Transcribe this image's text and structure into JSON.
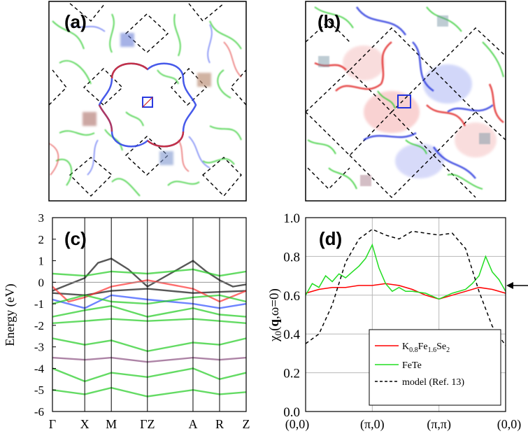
{
  "panels": {
    "a": {
      "label": "(a)"
    },
    "b": {
      "label": "(b)"
    },
    "c": {
      "label": "(c)"
    },
    "d": {
      "label": "(d)"
    }
  },
  "chart_data": [
    {
      "type": "heatmap",
      "panel": "a",
      "description_series": [
        {
          "name": "Fermi surface (red/blue)",
          "color": "#e03030"
        },
        {
          "name": "Fermi surface (green)",
          "color": "#22cc22"
        }
      ]
    },
    {
      "type": "heatmap",
      "panel": "b",
      "description_series": [
        {
          "name": "Fermi surface (red/blue)",
          "color": "#e03030"
        },
        {
          "name": "Fermi surface (green)",
          "color": "#22cc22"
        }
      ]
    },
    {
      "type": "line",
      "panel": "c",
      "title": "",
      "ylabel": "Energy (eV)",
      "ylim": [
        -6,
        3
      ],
      "yticks": [
        3,
        2,
        1,
        0,
        -1,
        -2,
        -3,
        -4,
        -5,
        -6
      ],
      "ytick_labels": [
        "3",
        "2",
        "1",
        "0",
        "-1",
        "-2",
        "-3",
        "-4",
        "-5",
        "-6"
      ],
      "kpoints": [
        "Γ",
        "X",
        "M",
        "ΓZ",
        "A",
        "R",
        "Z"
      ],
      "kpoint_positions": [
        0,
        0.34,
        0.62,
        1.0,
        1.48,
        1.76,
        2.04
      ],
      "bands": [
        {
          "color": "#111111",
          "x": [
            0,
            0.17,
            0.34,
            0.48,
            0.62,
            0.8,
            1.0
          ],
          "y": [
            -0.4,
            -0.1,
            0.2,
            0.9,
            1.1,
            0.6,
            -0.2
          ]
        },
        {
          "color": "#111111",
          "x": [
            1.0,
            1.24,
            1.48,
            1.62,
            1.76,
            1.9,
            2.04
          ],
          "y": [
            -0.2,
            0.4,
            1.0,
            0.5,
            0.1,
            -0.2,
            -0.1
          ]
        },
        {
          "color": "#111111",
          "x": [
            0,
            0.34,
            0.62,
            1.0,
            1.48,
            2.04
          ],
          "y": [
            -0.5,
            -0.6,
            -0.4,
            -0.3,
            -0.5,
            -0.4
          ]
        },
        {
          "color": "#ff3030",
          "x": [
            0,
            0.17,
            0.34,
            0.62,
            1.0
          ],
          "y": [
            -0.2,
            -0.9,
            -0.7,
            -0.2,
            0.1
          ]
        },
        {
          "color": "#ff3030",
          "x": [
            1.0,
            1.48,
            1.76,
            2.04
          ],
          "y": [
            0.1,
            -0.3,
            -0.9,
            -0.4
          ]
        },
        {
          "color": "#3050ff",
          "x": [
            0,
            0.34,
            0.62,
            1.0
          ],
          "y": [
            -0.8,
            -1.2,
            -0.6,
            -0.8
          ]
        },
        {
          "color": "#3050ff",
          "x": [
            1.0,
            1.48,
            1.76,
            2.04
          ],
          "y": [
            -0.8,
            -1.0,
            -1.2,
            -1.0
          ]
        },
        {
          "color": "#22cc22",
          "x": [
            0,
            0.34,
            0.62,
            1.0,
            1.48,
            1.76,
            2.04
          ],
          "y": [
            -1.0,
            -0.6,
            -0.9,
            -1.0,
            -0.7,
            -0.6,
            -0.9
          ]
        },
        {
          "color": "#22cc22",
          "x": [
            0,
            0.34,
            0.62,
            1.0,
            1.48,
            1.76,
            2.04
          ],
          "y": [
            -1.6,
            -1.3,
            -1.1,
            -1.6,
            -1.2,
            -1.5,
            -1.6
          ]
        },
        {
          "color": "#22cc22",
          "x": [
            0,
            0.34,
            0.62,
            1.0,
            1.48,
            1.76,
            2.04
          ],
          "y": [
            -1.9,
            -1.8,
            -1.7,
            -1.8,
            -1.7,
            -1.8,
            -1.9
          ]
        },
        {
          "color": "#22cc22",
          "x": [
            0,
            0.34,
            0.62,
            1.0,
            1.48,
            1.76,
            2.04
          ],
          "y": [
            0.4,
            0.3,
            0.5,
            0.4,
            0.6,
            0.3,
            0.5
          ]
        },
        {
          "color": "#22cc22",
          "x": [
            0,
            0.34,
            0.62,
            1.0,
            1.48,
            1.76,
            2.04
          ],
          "y": [
            -2.6,
            -2.9,
            -2.7,
            -3.2,
            -2.8,
            -2.9,
            -2.6
          ]
        },
        {
          "color": "#8a5080",
          "x": [
            0,
            0.34,
            0.62,
            1.0,
            1.48,
            1.76,
            2.04
          ],
          "y": [
            -3.5,
            -3.6,
            -3.5,
            -3.7,
            -3.5,
            -3.6,
            -3.5
          ]
        },
        {
          "color": "#22cc22",
          "x": [
            0,
            0.34,
            0.62,
            1.0,
            1.48,
            1.76,
            2.04
          ],
          "y": [
            -4.0,
            -4.6,
            -4.2,
            -4.4,
            -4.0,
            -4.5,
            -4.2
          ]
        },
        {
          "color": "#22cc22",
          "x": [
            0,
            0.34,
            0.62,
            1.0,
            1.48,
            1.76,
            2.04
          ],
          "y": [
            -5.0,
            -5.2,
            -4.9,
            -5.3,
            -5.0,
            -5.2,
            -5.1
          ]
        }
      ]
    },
    {
      "type": "line",
      "panel": "d",
      "title": "",
      "ylabel": "χ0(q,ω=0)",
      "ylim": [
        0.0,
        1.0
      ],
      "yticks": [
        0.0,
        0.2,
        0.4,
        0.6,
        0.8,
        1.0
      ],
      "ytick_labels": [
        "0.0",
        "0.2",
        "0.4",
        "0.6",
        "0.8",
        "1.0"
      ],
      "xtick_labels": [
        "(0,0)",
        "(π,0)",
        "(π,π)",
        "(0,0)"
      ],
      "xlim": [
        0,
        3
      ],
      "legend_position": "lower-right",
      "series": [
        {
          "name": "K0.8Fe1.6Se2",
          "name_parts": {
            "base1": "K",
            "sub1": "0.8",
            "base2": "Fe",
            "sub2": "1.6",
            "base3": "Se",
            "sub3": "2"
          },
          "color": "#ff0000",
          "dash": "solid",
          "x": [
            0,
            0.2,
            0.4,
            0.6,
            0.8,
            1.0,
            1.2,
            1.4,
            1.6,
            1.8,
            2.0,
            2.2,
            2.4,
            2.6,
            2.8,
            3.0
          ],
          "y": [
            0.61,
            0.63,
            0.64,
            0.64,
            0.65,
            0.65,
            0.66,
            0.65,
            0.63,
            0.6,
            0.58,
            0.6,
            0.62,
            0.64,
            0.63,
            0.61
          ]
        },
        {
          "name": "FeTe",
          "color": "#22dd22",
          "dash": "solid",
          "x": [
            0,
            0.1,
            0.2,
            0.3,
            0.4,
            0.5,
            0.6,
            0.7,
            0.8,
            0.9,
            1.0,
            1.1,
            1.2,
            1.3,
            1.4,
            1.5,
            1.6,
            1.8,
            2.0,
            2.2,
            2.4,
            2.5,
            2.6,
            2.7,
            2.8,
            2.9,
            3.0
          ],
          "y": [
            0.6,
            0.66,
            0.64,
            0.7,
            0.67,
            0.71,
            0.69,
            0.72,
            0.75,
            0.79,
            0.86,
            0.74,
            0.66,
            0.62,
            0.64,
            0.62,
            0.62,
            0.61,
            0.58,
            0.61,
            0.63,
            0.66,
            0.7,
            0.8,
            0.72,
            0.68,
            0.62
          ]
        },
        {
          "name": "model (Ref. 13)",
          "color": "#000000",
          "dash": "dashed",
          "x": [
            0,
            0.2,
            0.4,
            0.6,
            0.8,
            1.0,
            1.2,
            1.4,
            1.6,
            1.8,
            2.0,
            2.2,
            2.4,
            2.6,
            2.8,
            3.0
          ],
          "y": [
            0.35,
            0.4,
            0.55,
            0.77,
            0.89,
            0.94,
            0.91,
            0.89,
            0.93,
            0.92,
            0.91,
            0.92,
            0.84,
            0.62,
            0.44,
            0.34
          ]
        }
      ],
      "annotations": [
        {
          "type": "arrow",
          "target_y": 0.62,
          "direction": "pointing-left",
          "location": "right-outside"
        }
      ]
    }
  ]
}
